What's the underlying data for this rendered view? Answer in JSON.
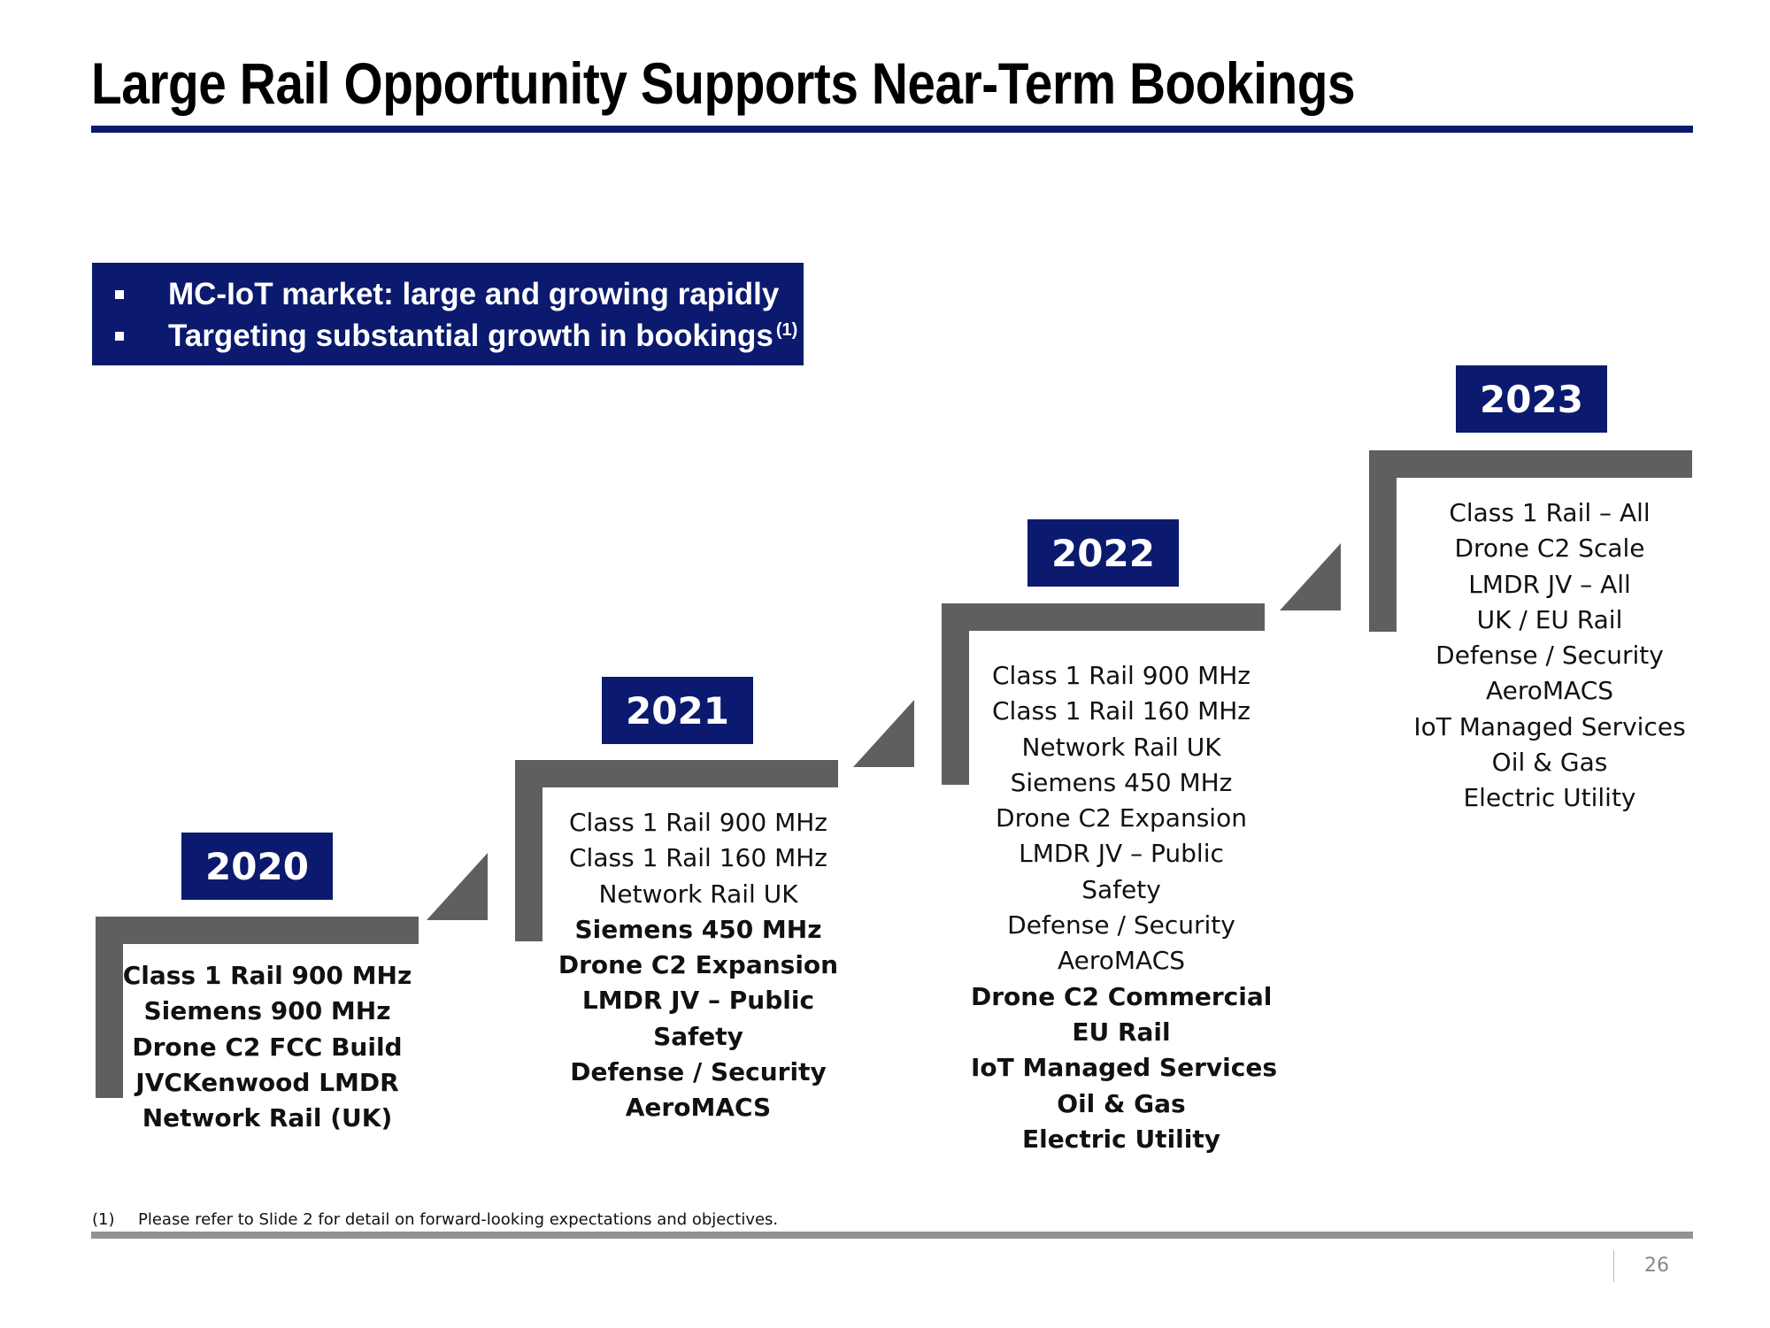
{
  "title": "Large Rail Opportunity Supports Near-Term Bookings",
  "bullets": [
    {
      "text": "MC-IoT market: large and growing rapidly",
      "sup": ""
    },
    {
      "text": "Targeting substantial growth in bookings",
      "sup": "(1)"
    }
  ],
  "steps": [
    {
      "year": "2020",
      "items": [
        {
          "text": "Class 1 Rail 900 MHz",
          "bold": true
        },
        {
          "text": "Siemens 900 MHz",
          "bold": true
        },
        {
          "text": "Drone C2 FCC Build",
          "bold": true
        },
        {
          "text": "JVCKenwood LMDR",
          "bold": true
        },
        {
          "text": "Network Rail (UK)",
          "bold": true
        }
      ]
    },
    {
      "year": "2021",
      "items": [
        {
          "text": "Class 1 Rail 900 MHz",
          "bold": false
        },
        {
          "text": "Class 1 Rail 160 MHz",
          "bold": false
        },
        {
          "text": "Network Rail UK",
          "bold": false
        },
        {
          "text": "Siemens 450 MHz",
          "bold": true
        },
        {
          "text": "Drone C2 Expansion",
          "bold": true
        },
        {
          "text": "LMDR JV – Public",
          "bold": true
        },
        {
          "text": "Safety",
          "bold": true
        },
        {
          "text": "Defense / Security",
          "bold": true
        },
        {
          "text": "AeroMACS",
          "bold": true
        }
      ]
    },
    {
      "year": "2022",
      "items": [
        {
          "text": "Class 1 Rail 900 MHz",
          "bold": false
        },
        {
          "text": "Class 1 Rail 160 MHz",
          "bold": false
        },
        {
          "text": "Network Rail UK",
          "bold": false
        },
        {
          "text": "Siemens 450 MHz",
          "bold": false
        },
        {
          "text": "Drone C2 Expansion",
          "bold": false
        },
        {
          "text": "LMDR JV – Public",
          "bold": false
        },
        {
          "text": "Safety",
          "bold": false
        },
        {
          "text": "Defense / Security",
          "bold": false
        },
        {
          "text": "AeroMACS",
          "bold": false
        },
        {
          "text": "Drone C2 Commercial",
          "bold": true
        },
        {
          "text": "EU Rail",
          "bold": true
        },
        {
          "text": "IoT Managed Services",
          "bold": true
        },
        {
          "text": "Oil & Gas",
          "bold": true
        },
        {
          "text": "Electric Utility",
          "bold": true
        }
      ]
    },
    {
      "year": "2023",
      "items": [
        {
          "text": "Class 1 Rail – All",
          "bold": false
        },
        {
          "text": "Drone C2 Scale",
          "bold": false
        },
        {
          "text": "LMDR JV – All",
          "bold": false
        },
        {
          "text": "UK / EU Rail",
          "bold": false
        },
        {
          "text": "Defense / Security",
          "bold": false
        },
        {
          "text": "AeroMACS",
          "bold": false
        },
        {
          "text": "IoT Managed Services",
          "bold": false
        },
        {
          "text": "Oil & Gas",
          "bold": false
        },
        {
          "text": "Electric Utility",
          "bold": false
        }
      ]
    }
  ],
  "footnote": {
    "marker": "(1)",
    "text": "Please refer to Slide 2 for detail on forward-looking expectations and objectives."
  },
  "page_number": "26",
  "colors": {
    "navy": "#0b1a6e",
    "step_grey": "#5f5f5f",
    "footer_grey": "#929292"
  }
}
